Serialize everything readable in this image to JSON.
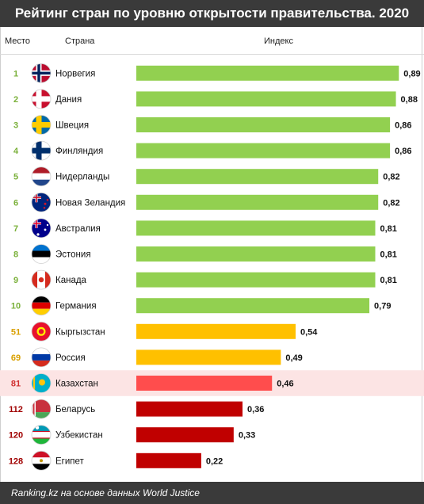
{
  "header": {
    "title": "Рейтинг стран по уровню открытости правительства. 2020",
    "col_rank": "Место",
    "col_country": "Страна",
    "col_index": "Индекс"
  },
  "footer": {
    "source": "Ranking.kz на основе данных World Justice"
  },
  "colors": {
    "top10": "#92d050",
    "mid": "#ffc000",
    "kazakhstan": "#ff4d4d",
    "low": "#c00000",
    "rank_top10": "#7ab03a",
    "rank_mid": "#d9a000",
    "rank_kz": "#d03030",
    "rank_low": "#a00000",
    "kz_row_bg": "#fce4e4"
  },
  "chart_data": {
    "type": "bar",
    "orientation": "horizontal",
    "xlim": [
      0,
      0.9
    ],
    "rows": [
      {
        "rank": "1",
        "country": "Норвегия",
        "value": 0.89,
        "label": "0,89",
        "group": "top10",
        "flag": "norway-flag"
      },
      {
        "rank": "2",
        "country": "Дания",
        "value": 0.88,
        "label": "0,88",
        "group": "top10",
        "flag": "denmark-flag"
      },
      {
        "rank": "3",
        "country": "Швеция",
        "value": 0.86,
        "label": "0,86",
        "group": "top10",
        "flag": "sweden-flag"
      },
      {
        "rank": "4",
        "country": "Финляндия",
        "value": 0.86,
        "label": "0,86",
        "group": "top10",
        "flag": "finland-flag"
      },
      {
        "rank": "5",
        "country": "Нидерланды",
        "value": 0.82,
        "label": "0,82",
        "group": "top10",
        "flag": "netherlands-flag"
      },
      {
        "rank": "6",
        "country": "Новая Зеландия",
        "value": 0.82,
        "label": "0,82",
        "group": "top10",
        "flag": "new-zealand-flag"
      },
      {
        "rank": "7",
        "country": "Австралия",
        "value": 0.81,
        "label": "0,81",
        "group": "top10",
        "flag": "australia-flag"
      },
      {
        "rank": "8",
        "country": "Эстония",
        "value": 0.81,
        "label": "0,81",
        "group": "top10",
        "flag": "estonia-flag"
      },
      {
        "rank": "9",
        "country": "Канада",
        "value": 0.81,
        "label": "0,81",
        "group": "top10",
        "flag": "canada-flag"
      },
      {
        "rank": "10",
        "country": "Германия",
        "value": 0.79,
        "label": "0,79",
        "group": "top10",
        "flag": "germany-flag"
      },
      {
        "rank": "51",
        "country": "Кыргызстан",
        "value": 0.54,
        "label": "0,54",
        "group": "mid",
        "flag": "kyrgyzstan-flag"
      },
      {
        "rank": "69",
        "country": "Россия",
        "value": 0.49,
        "label": "0,49",
        "group": "mid",
        "flag": "russia-flag"
      },
      {
        "rank": "81",
        "country": "Казахстан",
        "value": 0.46,
        "label": "0,46",
        "group": "kazakhstan",
        "flag": "kazakhstan-flag"
      },
      {
        "rank": "112",
        "country": "Беларусь",
        "value": 0.36,
        "label": "0,36",
        "group": "low",
        "flag": "belarus-flag"
      },
      {
        "rank": "120",
        "country": "Узбекистан",
        "value": 0.33,
        "label": "0,33",
        "group": "low",
        "flag": "uzbekistan-flag"
      },
      {
        "rank": "128",
        "country": "Египет",
        "value": 0.22,
        "label": "0,22",
        "group": "low",
        "flag": "egypt-flag"
      }
    ]
  }
}
